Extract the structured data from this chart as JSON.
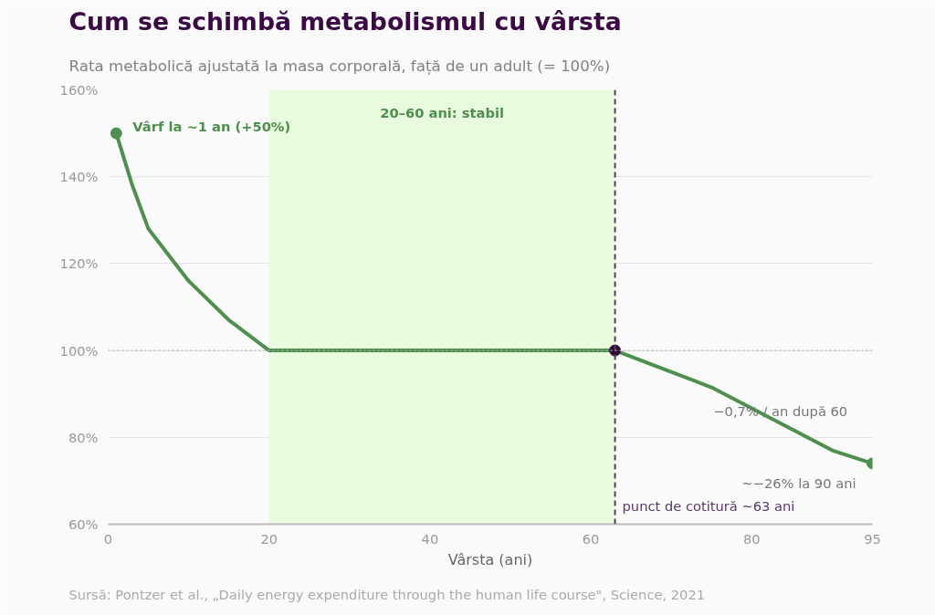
{
  "chart_data": {
    "type": "line",
    "title": "Cum se schimbă metabolismul cu vârsta",
    "subtitle": "Rata metabolică ajustată la masa corporală, față de un adult (= 100%)",
    "xlabel": "Vârsta (ani)",
    "x": [
      1,
      3,
      5,
      10,
      15,
      20,
      63,
      75,
      90,
      95
    ],
    "series": [
      {
        "color": "#4e8f4e",
        "values": [
          150,
          138,
          128,
          116,
          107,
          100,
          100,
          91.5,
          77,
          74
        ]
      },
      {
        "type": "scatter",
        "marker": "circle",
        "color": "#4e8f4e",
        "x": [
          1,
          95
        ],
        "values": [
          150,
          74
        ]
      },
      {
        "type": "scatter",
        "marker": "circle",
        "color": "#2e0a3a",
        "x": [
          63
        ],
        "values": [
          100
        ]
      }
    ],
    "xlim": [
      0,
      95
    ],
    "xticks": [
      0,
      20,
      40,
      60,
      80,
      95
    ],
    "ylim": [
      60,
      160
    ],
    "yticks": [
      {
        "value": 60,
        "label": "60%"
      },
      {
        "value": 80,
        "label": "80%"
      },
      {
        "value": 100,
        "label": "100%"
      },
      {
        "value": 120,
        "label": "120%"
      },
      {
        "value": 140,
        "label": "140%"
      },
      {
        "value": 160,
        "label": "160%"
      }
    ],
    "grid": "y",
    "marker": "none",
    "line_style": "solid",
    "bands": [
      {
        "axis": "x",
        "from": 20,
        "to": 63,
        "label": "20–60 ani: stabil",
        "color": "#e9fbdd"
      }
    ],
    "ref_lines": [
      {
        "axis": "x",
        "value": 63,
        "label": "punct de cotitură ~63 ani",
        "color": "#5a3a6a",
        "line_style": "dashed"
      },
      {
        "axis": "y",
        "value": 100,
        "color": "#b8b0c8",
        "line_style": "dotted"
      }
    ],
    "annotations": [
      "Vârf la ~1 an (+50%)",
      "−0,7% / an după 60",
      "~−26% la 90 ani",
      "Sursă: Pontzer et al., „Daily energy expenditure through the human life course\", Science, 2021"
    ]
  }
}
